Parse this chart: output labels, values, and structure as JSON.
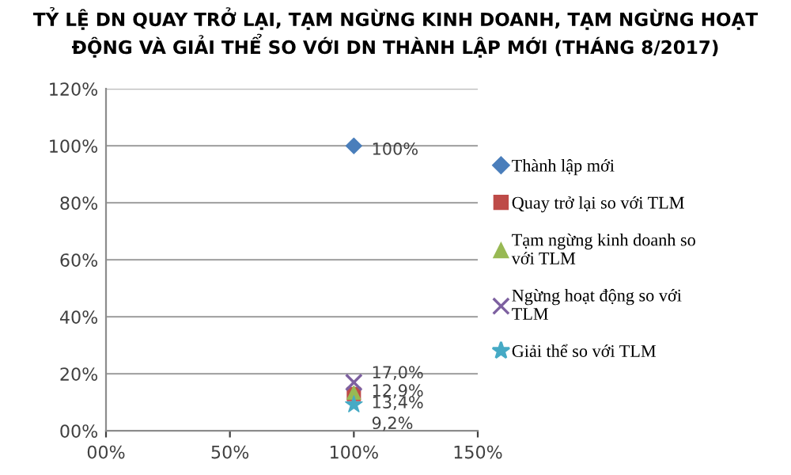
{
  "chart_data": {
    "type": "scatter",
    "title": "TỶ LỆ DN QUAY TRỞ LẠI, TẠM NGỪNG KINH DOANH, TẠM NGỪNG HOẠT ĐỘNG VÀ GIẢI THỂ SO VỚI DN THÀNH LẬP MỚI (THÁNG 8/2017)",
    "x": [
      100
    ],
    "series": [
      {
        "name": "Thành lập mới",
        "color": "#4a7ebb",
        "marker": "diamond",
        "values": [
          100
        ],
        "value_labels": [
          "100%"
        ]
      },
      {
        "name": "Quay trở lại so với TLM",
        "color": "#be4b48",
        "marker": "square",
        "values": [
          12.9
        ],
        "value_labels": [
          "12,9%"
        ]
      },
      {
        "name": "Tạm ngừng kinh doanh so với TLM",
        "color": "#98b954",
        "marker": "triangle",
        "values": [
          13.4
        ],
        "value_labels": [
          "13,4%"
        ]
      },
      {
        "name": "Ngừng hoạt động so với TLM",
        "color": "#7d60a0",
        "marker": "cross",
        "values": [
          17.0
        ],
        "value_labels": [
          "17,0%"
        ]
      },
      {
        "name": "Giải thể so với TLM",
        "color": "#46aac5",
        "marker": "star",
        "values": [
          9.2
        ],
        "value_labels": [
          "9,2%"
        ]
      }
    ],
    "xlim": [
      0,
      150
    ],
    "xticks": [
      {
        "value": 0,
        "label": "00%"
      },
      {
        "value": 50,
        "label": "50%"
      },
      {
        "value": 100,
        "label": "100%"
      },
      {
        "value": 150,
        "label": "150%"
      }
    ],
    "ylim": [
      0,
      120
    ],
    "yticks": [
      {
        "value": 0,
        "label": "00%"
      },
      {
        "value": 20,
        "label": "20%"
      },
      {
        "value": 40,
        "label": "40%"
      },
      {
        "value": 60,
        "label": "60%"
      },
      {
        "value": 80,
        "label": "80%"
      },
      {
        "value": 100,
        "label": "100%"
      },
      {
        "value": 120,
        "label": "120%"
      }
    ],
    "grid": "y",
    "legend": "right"
  }
}
